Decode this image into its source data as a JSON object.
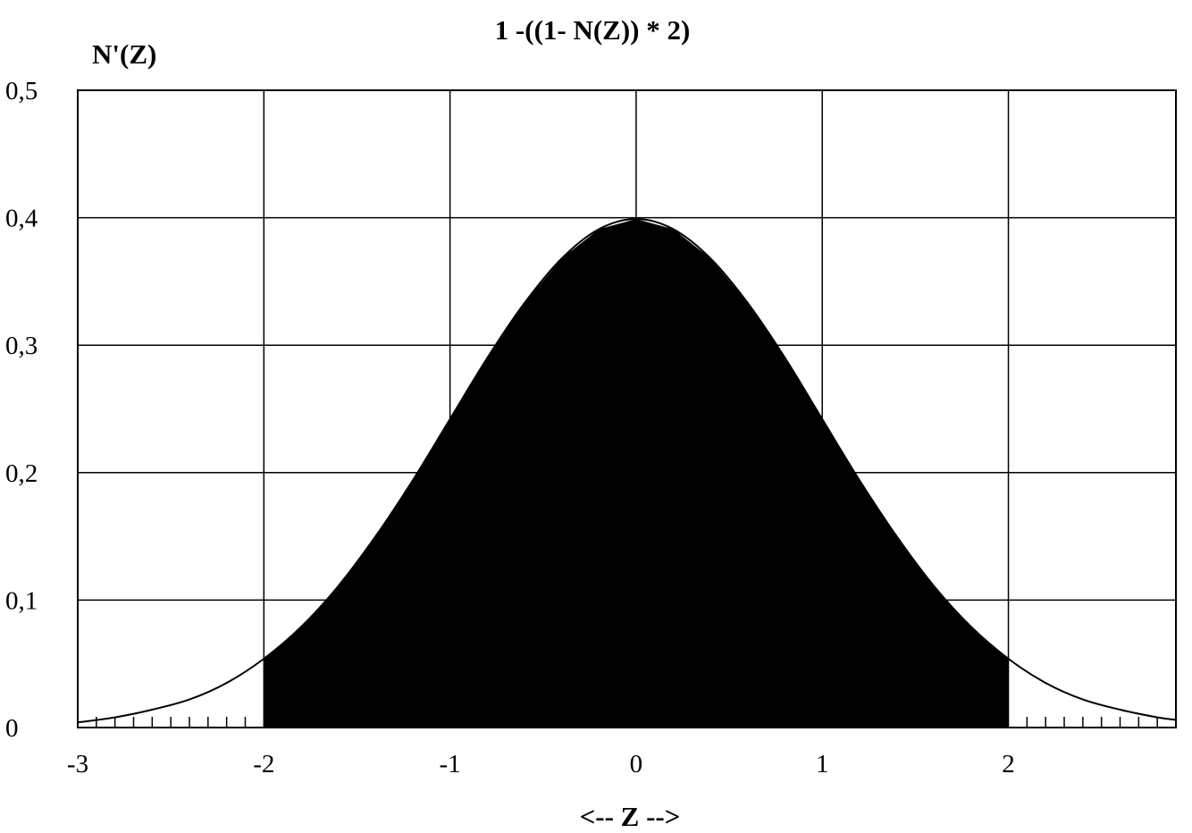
{
  "chart_data": {
    "type": "area",
    "title": "1 -((1- N(Z)) * 2)",
    "ylabel": "N'(Z)",
    "xlabel": "<-- Z -->",
    "xlim": [
      -3,
      2.9
    ],
    "ylim": [
      0,
      0.5
    ],
    "x_ticks": [
      -3,
      -2,
      -1,
      0,
      1,
      2
    ],
    "x_tick_labels": [
      "-3",
      "-2",
      "-1",
      "0",
      "1",
      "2"
    ],
    "y_ticks": [
      0,
      0.1,
      0.2,
      0.3,
      0.4,
      0.5
    ],
    "y_tick_labels": [
      "0",
      "0,1",
      "0,2",
      "0,3",
      "0,4",
      "0,5"
    ],
    "grid": true,
    "series": [
      {
        "kind": "line",
        "x": [
          -3.0,
          -2.8,
          -2.6,
          -2.4,
          -2.2,
          -2.0,
          -1.8,
          -1.6,
          -1.4,
          -1.2,
          -1.0,
          -0.8,
          -0.6,
          -0.4,
          -0.2,
          0.0,
          0.2,
          0.4,
          0.6,
          0.8,
          1.0,
          1.2,
          1.4,
          1.6,
          1.8,
          2.0,
          2.2,
          2.4,
          2.6,
          2.8,
          2.9
        ],
        "y": [
          0.004,
          0.008,
          0.014,
          0.022,
          0.035,
          0.054,
          0.079,
          0.111,
          0.15,
          0.194,
          0.242,
          0.29,
          0.333,
          0.368,
          0.391,
          0.399,
          0.391,
          0.368,
          0.333,
          0.29,
          0.242,
          0.194,
          0.15,
          0.111,
          0.079,
          0.054,
          0.035,
          0.022,
          0.014,
          0.008,
          0.006
        ]
      },
      {
        "kind": "shaded-area",
        "x_from": -2,
        "x_to": 2
      }
    ],
    "colors": {
      "curve": "#000000",
      "fill": "#000000",
      "grid": "#000000",
      "background": "#ffffff"
    }
  }
}
